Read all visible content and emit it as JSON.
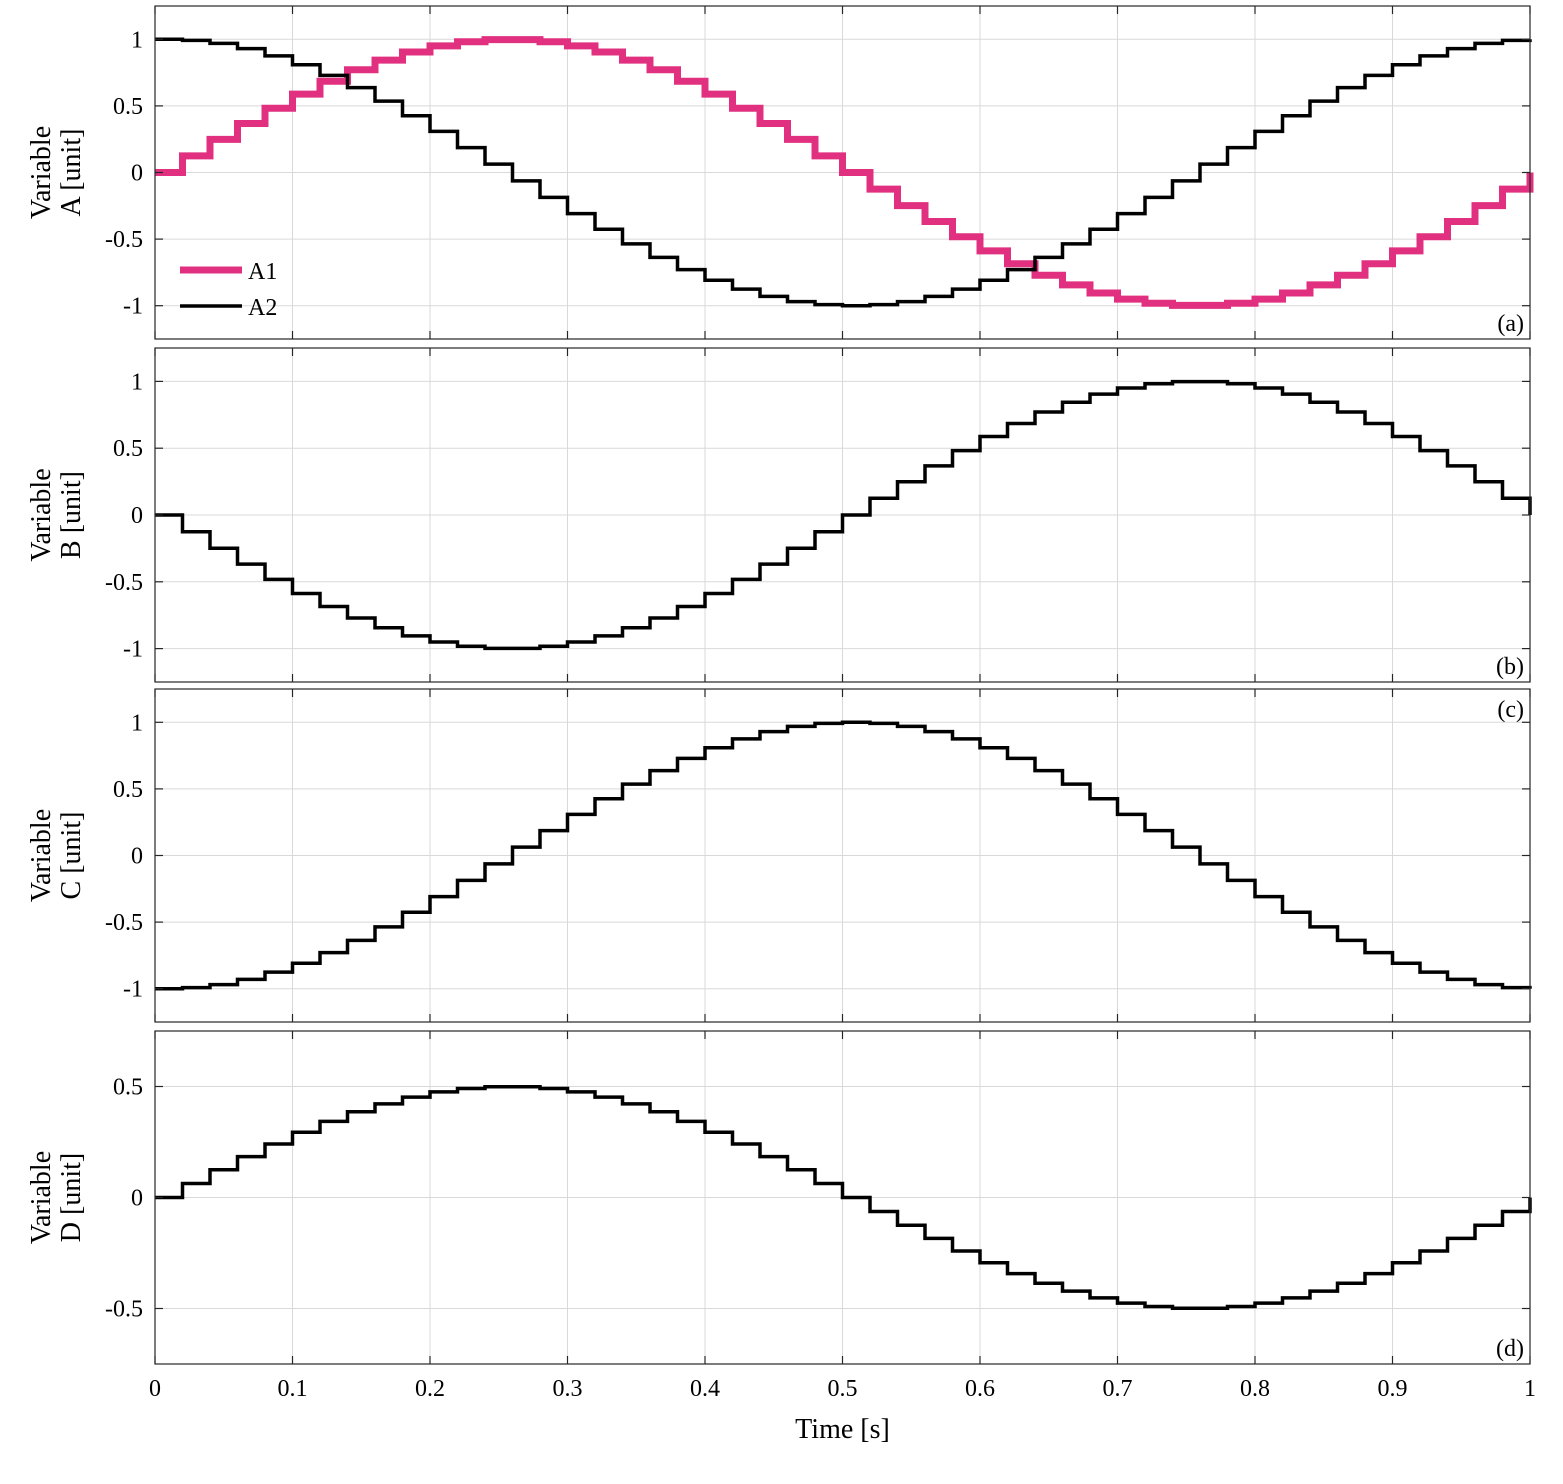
{
  "chart_data": [
    {
      "type": "line",
      "step": true,
      "panel_label": "(a)",
      "ylabel_lines": [
        "Variable",
        "A [unit]"
      ],
      "xlim": [
        0,
        1
      ],
      "ylim": [
        -1.25,
        1.25
      ],
      "yticks": [
        -1,
        -0.5,
        0,
        0.5,
        1
      ],
      "ytick_labels": [
        "-1",
        "-0.5",
        "0",
        "0.5",
        "1"
      ],
      "grid": true,
      "legend": "lower-left",
      "series": [
        {
          "name": "A1",
          "color": "#e0307f",
          "x_start": 0,
          "dt": 0.02,
          "values": [
            0,
            0.125,
            0.249,
            0.368,
            0.482,
            0.588,
            0.685,
            0.771,
            0.844,
            0.905,
            0.951,
            0.982,
            0.998,
            0.998,
            0.982,
            0.951,
            0.905,
            0.844,
            0.771,
            0.685,
            0.588,
            0.482,
            0.368,
            0.249,
            0.125,
            0,
            -0.125,
            -0.249,
            -0.368,
            -0.482,
            -0.588,
            -0.685,
            -0.771,
            -0.844,
            -0.905,
            -0.951,
            -0.982,
            -0.998,
            -0.998,
            -0.982,
            -0.951,
            -0.905,
            -0.844,
            -0.771,
            -0.685,
            -0.588,
            -0.482,
            -0.368,
            -0.249,
            -0.125,
            0
          ]
        },
        {
          "name": "A2",
          "color": "#000000",
          "x_start": 0,
          "dt": 0.02,
          "values": [
            1,
            0.992,
            0.969,
            0.93,
            0.876,
            0.809,
            0.729,
            0.637,
            0.536,
            0.426,
            0.309,
            0.187,
            0.063,
            -0.063,
            -0.187,
            -0.309,
            -0.426,
            -0.536,
            -0.637,
            -0.729,
            -0.809,
            -0.876,
            -0.93,
            -0.969,
            -0.992,
            -1,
            -0.992,
            -0.969,
            -0.93,
            -0.876,
            -0.809,
            -0.729,
            -0.637,
            -0.536,
            -0.426,
            -0.309,
            -0.187,
            -0.063,
            0.063,
            0.187,
            0.309,
            0.426,
            0.536,
            0.637,
            0.729,
            0.809,
            0.876,
            0.93,
            0.969,
            0.992,
            1
          ]
        }
      ]
    },
    {
      "type": "line",
      "step": true,
      "panel_label": "(b)",
      "ylabel_lines": [
        "Variable",
        "B [unit]"
      ],
      "xlim": [
        0,
        1
      ],
      "ylim": [
        -1.25,
        1.25
      ],
      "yticks": [
        -1,
        -0.5,
        0,
        0.5,
        1
      ],
      "ytick_labels": [
        "-1",
        "-0.5",
        "0",
        "0.5",
        "1"
      ],
      "grid": true,
      "series": [
        {
          "color": "#000000",
          "x_start": 0,
          "dt": 0.02,
          "values": [
            0,
            -0.125,
            -0.249,
            -0.368,
            -0.482,
            -0.588,
            -0.685,
            -0.771,
            -0.844,
            -0.905,
            -0.951,
            -0.982,
            -0.998,
            -0.998,
            -0.982,
            -0.951,
            -0.905,
            -0.844,
            -0.771,
            -0.685,
            -0.588,
            -0.482,
            -0.368,
            -0.249,
            -0.125,
            0,
            0.125,
            0.249,
            0.368,
            0.482,
            0.588,
            0.685,
            0.771,
            0.844,
            0.905,
            0.951,
            0.982,
            0.998,
            0.998,
            0.982,
            0.951,
            0.905,
            0.844,
            0.771,
            0.685,
            0.588,
            0.482,
            0.368,
            0.249,
            0.125,
            0
          ]
        }
      ]
    },
    {
      "type": "line",
      "step": true,
      "panel_label": "(c)",
      "ylabel_lines": [
        "Variable",
        "C [unit]"
      ],
      "xlim": [
        0,
        1
      ],
      "ylim": [
        -1.25,
        1.25
      ],
      "yticks": [
        -1,
        -0.5,
        0,
        0.5,
        1
      ],
      "ytick_labels": [
        "-1",
        "-0.5",
        "0",
        "0.5",
        "1"
      ],
      "grid": true,
      "series": [
        {
          "color": "#000000",
          "x_start": 0,
          "dt": 0.02,
          "values": [
            -1,
            -0.992,
            -0.969,
            -0.93,
            -0.876,
            -0.809,
            -0.729,
            -0.637,
            -0.536,
            -0.426,
            -0.309,
            -0.187,
            -0.063,
            0.063,
            0.187,
            0.309,
            0.426,
            0.536,
            0.637,
            0.729,
            0.809,
            0.876,
            0.93,
            0.969,
            0.992,
            1,
            0.992,
            0.969,
            0.93,
            0.876,
            0.809,
            0.729,
            0.637,
            0.536,
            0.426,
            0.309,
            0.187,
            0.063,
            -0.063,
            -0.187,
            -0.309,
            -0.426,
            -0.536,
            -0.637,
            -0.729,
            -0.809,
            -0.876,
            -0.93,
            -0.969,
            -0.992,
            -1
          ]
        }
      ]
    },
    {
      "type": "line",
      "step": true,
      "panel_label": "(d)",
      "ylabel_lines": [
        "Variable",
        "D [unit]"
      ],
      "xlabel": "Time [s]",
      "xlim": [
        0,
        1
      ],
      "xticks": [
        0,
        0.1,
        0.2,
        0.3,
        0.4,
        0.5,
        0.6,
        0.7,
        0.8,
        0.9,
        1
      ],
      "xtick_labels": [
        "0",
        "0.1",
        "0.2",
        "0.3",
        "0.4",
        "0.5",
        "0.6",
        "0.7",
        "0.8",
        "0.9",
        "1"
      ],
      "ylim": [
        -0.75,
        0.75
      ],
      "yticks": [
        -0.5,
        0,
        0.5
      ],
      "ytick_labels": [
        "-0.5",
        "0",
        "0.5"
      ],
      "grid": true,
      "series": [
        {
          "color": "#000000",
          "x_start": 0,
          "dt": 0.02,
          "values": [
            0,
            0.063,
            0.125,
            0.184,
            0.241,
            0.294,
            0.343,
            0.386,
            0.422,
            0.452,
            0.476,
            0.491,
            0.499,
            0.499,
            0.491,
            0.476,
            0.452,
            0.422,
            0.386,
            0.343,
            0.294,
            0.241,
            0.184,
            0.125,
            0.063,
            0,
            -0.063,
            -0.125,
            -0.184,
            -0.241,
            -0.294,
            -0.343,
            -0.386,
            -0.422,
            -0.452,
            -0.476,
            -0.491,
            -0.499,
            -0.499,
            -0.491,
            -0.476,
            -0.452,
            -0.422,
            -0.386,
            -0.343,
            -0.294,
            -0.241,
            -0.184,
            -0.125,
            -0.063,
            0
          ]
        }
      ]
    }
  ]
}
